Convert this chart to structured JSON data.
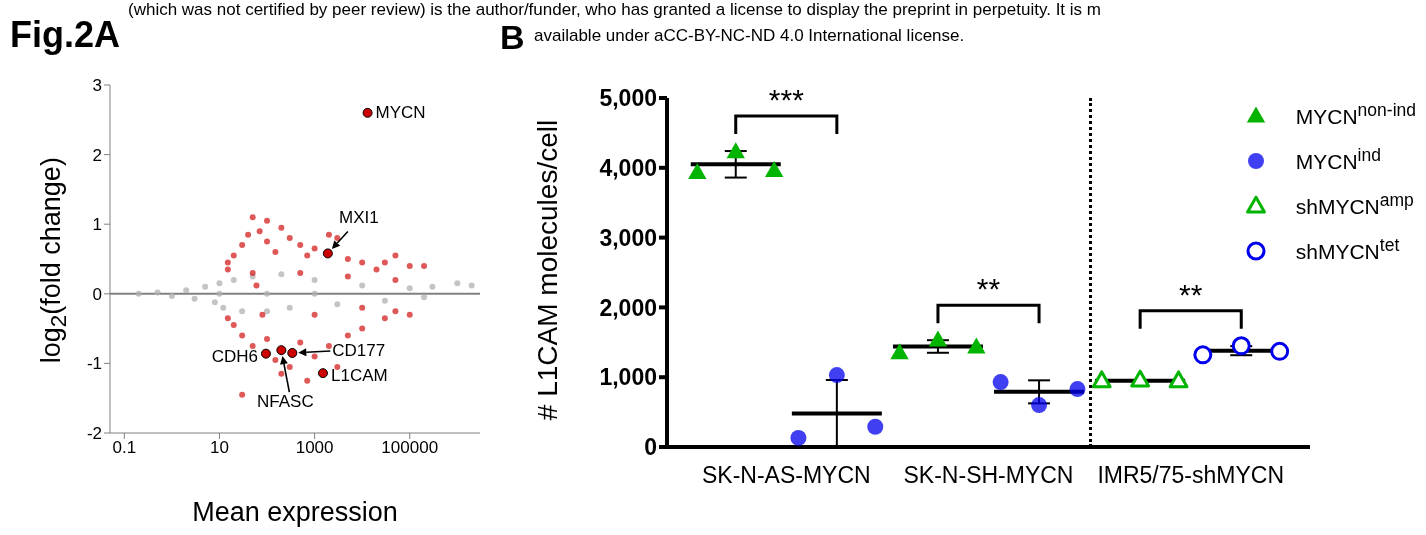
{
  "chart_data": [
    {
      "type": "scatter",
      "title": "Fig.2A",
      "xlabel": "Mean expression",
      "ylabel": "log$_{2}$(fold change)",
      "log": "x",
      "xlim": [
        0.05,
        3000000
      ],
      "xticks": [
        0.1,
        10,
        1000,
        100000
      ],
      "ylim": [
        -2,
        3
      ],
      "yticks": [
        -2,
        -1,
        0,
        1,
        2,
        3
      ],
      "grid": false,
      "legend": false,
      "marker": "circle",
      "ref_lines": [
        {
          "axis": "y",
          "value": 0,
          "color": "#808080"
        }
      ],
      "series": [
        {
          "color": "#b0b0b0",
          "x": [
            0.2,
            0.5,
            1,
            2,
            3,
            5,
            8,
            10,
            12,
            20,
            30,
            50,
            100,
            200,
            300,
            1000,
            3000,
            10000,
            30000,
            100000,
            200000,
            300000,
            1000000,
            2000000,
            100,
            1000,
            10
          ],
          "values": [
            0,
            0.02,
            -0.03,
            0.05,
            -0.07,
            0.1,
            -0.12,
            0.15,
            -0.2,
            0.2,
            -0.25,
            0.25,
            -0.25,
            0.28,
            -0.2,
            0.2,
            -0.15,
            0.12,
            -0.1,
            0.08,
            -0.05,
            0.1,
            0.15,
            0.12,
            0,
            0,
            0
          ]
        },
        {
          "color": "#d42020",
          "x": [
            15,
            15,
            20,
            30,
            40,
            50,
            70,
            100,
            100,
            150,
            200,
            300,
            500,
            700,
            1000,
            2000,
            3000,
            5000,
            10000,
            20000,
            30000,
            50000,
            100000,
            200000,
            50,
            500,
            5000,
            50000,
            60,
            15,
            20,
            30,
            50,
            100,
            150,
            200,
            300,
            500,
            700,
            1000,
            2000,
            3000,
            5000,
            10000,
            30000,
            50000,
            100000,
            30,
            80,
            1000,
            10000
          ],
          "values": [
            0.35,
            0.45,
            0.55,
            0.7,
            0.85,
            1.1,
            0.9,
            0.75,
            1.05,
            0.6,
            0.95,
            0.8,
            0.7,
            0.55,
            0.65,
            0.85,
            0.8,
            0.5,
            0.45,
            0.35,
            0.45,
            0.55,
            0.4,
            0.4,
            0.3,
            0.3,
            0.25,
            0.2,
            0.12,
            -0.35,
            -0.45,
            -0.6,
            -0.75,
            -0.65,
            -0.95,
            -1.15,
            -1.05,
            -0.7,
            -1.25,
            -0.9,
            -0.75,
            -1.05,
            -0.6,
            -0.5,
            -0.35,
            -0.25,
            -0.3,
            -1.45,
            -0.3,
            -0.3,
            -0.2
          ]
        },
        {
          "color": "#cc0000",
          "marker": "circle-edge",
          "x": [
            13000,
            1900,
            95,
            200,
            340,
            1500
          ],
          "values": [
            2.6,
            0.58,
            -0.86,
            -0.81,
            -0.85,
            -1.14
          ]
        }
      ],
      "annotations": [
        "(which was not certified by peer review) is the author/funder, who has granted a license to display the preprint in perpetuity. It is m",
        "available under aCC-BY-NC-ND 4.0 International license.",
        {
          "text": "MYCN",
          "x": 13000,
          "y": 2.6
        },
        {
          "text": "MXI1",
          "x": 1900,
          "y": 0.58
        },
        {
          "text": "CDH6",
          "x": 95,
          "y": -0.86
        },
        {
          "text": "NFASC",
          "x": 200,
          "y": -0.81
        },
        {
          "text": "CD177",
          "x": 340,
          "y": -0.85
        },
        {
          "text": "L1CAM",
          "x": 1500,
          "y": -1.14
        }
      ]
    },
    {
      "type": "scatter",
      "title": "B",
      "ylabel": "# L1CAM molecules/cell",
      "categories": [
        "SK-N-AS-MYCN",
        "SK-N-SH-MYCN",
        "IMR5/75-shMYCN"
      ],
      "ylim": [
        0,
        5000
      ],
      "yticks": [
        0,
        {
          "value": 1000,
          "label": "1,000"
        },
        {
          "value": 2000,
          "label": "2,000"
        },
        {
          "value": 3000,
          "label": "3,000"
        },
        {
          "value": 4000,
          "label": "4,000"
        },
        {
          "value": 5000,
          "label": "5,000"
        }
      ],
      "grid": false,
      "legend": "top right",
      "series": [
        {
          "name": "MYCN$^{non-ind}$",
          "color": "#00b400",
          "marker": "triangle",
          "x": [
            "SK-N-AS-MYCN",
            "SK-N-AS-MYCN",
            "SK-N-AS-MYCN",
            "SK-N-SH-MYCN",
            "SK-N-SH-MYCN",
            "SK-N-SH-MYCN"
          ],
          "values": [
            3930,
            4230,
            3960,
            1350,
            1530,
            1430
          ]
        },
        {
          "name": "MYCN$^{ind}$",
          "color": "#0000ee",
          "marker": "circle",
          "x": [
            "SK-N-AS-MYCN",
            "SK-N-AS-MYCN",
            "SK-N-AS-MYCN",
            "SK-N-SH-MYCN",
            "SK-N-SH-MYCN",
            "SK-N-SH-MYCN"
          ],
          "values": [
            130,
            1030,
            290,
            930,
            600,
            830
          ]
        },
        {
          "name": "shMYCN$^{amp}$",
          "color": "#00b400",
          "marker": "triangle-open",
          "x": [
            "IMR5/75-shMYCN",
            "IMR5/75-shMYCN",
            "IMR5/75-shMYCN"
          ],
          "values": [
            950,
            960,
            950
          ]
        },
        {
          "name": "shMYCN$^{tet}$",
          "color": "#0000ee",
          "marker": "circle-open",
          "x": [
            "IMR5/75-shMYCN",
            "IMR5/75-shMYCN",
            "IMR5/75-shMYCN"
          ],
          "values": [
            1320,
            1450,
            1370
          ]
        },
        {
          "type": "box",
          "color": "#000000",
          "boxes": [
            {
              "low": 3860,
              "q1": 4050,
              "median": 4050,
              "q3": 4050,
              "high": 4240
            },
            {
              "low": 1350,
              "q1": 1440,
              "median": 1440,
              "q3": 1440,
              "high": 1530
            },
            {
              "low": 950,
              "q1": 950,
              "median": 950,
              "q3": 950,
              "high": 950
            }
          ]
        },
        {
          "type": "box",
          "color": "#000000",
          "boxes": [
            {
              "low": 0,
              "q1": 480,
              "median": 480,
              "q3": 480,
              "high": 960
            },
            {
              "low": 625,
              "q1": 790,
              "median": 790,
              "q3": 790,
              "high": 955
            },
            {
              "low": 1315,
              "q1": 1380,
              "median": 1380,
              "q3": 1380,
              "high": 1445
            }
          ]
        }
      ],
      "annotations": [
        "***",
        "**",
        "**"
      ]
    }
  ]
}
